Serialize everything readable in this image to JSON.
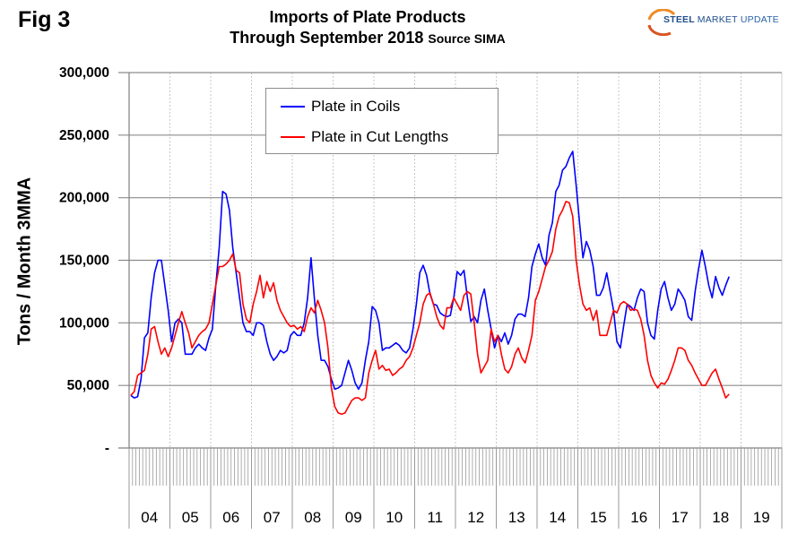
{
  "figure_label": "Fig 3",
  "title_line1": "Imports of Plate Products",
  "title_line2": "Through September 2018",
  "title_source": "Source SIMA",
  "logo": {
    "word1": "STEEL",
    "word2": "MARKET",
    "word3": "UPDATE"
  },
  "chart_data": {
    "type": "line",
    "title": "Imports of Plate Products Through September 2018 Source SIMA",
    "xlabel": "",
    "ylabel": "Tons / Month 3MMA",
    "ylim": [
      0,
      300000
    ],
    "yticks": [
      0,
      50000,
      100000,
      150000,
      200000,
      250000,
      300000
    ],
    "ytick_labels": [
      "-",
      "50,000",
      "100,000",
      "150,000",
      "200,000",
      "250,000",
      "300,000"
    ],
    "x_categories": [
      "04",
      "05",
      "06",
      "07",
      "08",
      "09",
      "10",
      "11",
      "12",
      "13",
      "14",
      "15",
      "16",
      "17",
      "18",
      "19"
    ],
    "x_start": "Jan 2004",
    "x_end": "Sep 2018",
    "frequency": "monthly",
    "grid": "horizontal solid, vertical dotted at year boundaries",
    "legend_position": "top-left inside",
    "series": [
      {
        "name": "Plate in Coils",
        "color": "#0000ff",
        "values": [
          42000,
          40000,
          41000,
          55000,
          88000,
          92000,
          120000,
          140000,
          150000,
          150000,
          130000,
          110000,
          85000,
          100000,
          103000,
          100000,
          75000,
          75000,
          75000,
          80000,
          83000,
          80000,
          78000,
          88000,
          95000,
          130000,
          160000,
          205000,
          203000,
          190000,
          160000,
          140000,
          120000,
          100000,
          93000,
          93000,
          90000,
          100000,
          100000,
          98000,
          85000,
          75000,
          70000,
          73000,
          78000,
          76000,
          78000,
          90000,
          93000,
          90000,
          90000,
          100000,
          120000,
          152000,
          120000,
          90000,
          70000,
          70000,
          65000,
          55000,
          47000,
          48000,
          50000,
          60000,
          70000,
          62000,
          52000,
          47000,
          52000,
          70000,
          85000,
          113000,
          110000,
          100000,
          78000,
          80000,
          80000,
          82000,
          84000,
          82000,
          78000,
          76000,
          80000,
          95000,
          115000,
          140000,
          146000,
          138000,
          123000,
          115000,
          114000,
          108000,
          106000,
          105000,
          106000,
          120000,
          141000,
          138000,
          142000,
          120000,
          101000,
          105000,
          100000,
          118000,
          127000,
          110000,
          95000,
          80000,
          90000,
          85000,
          92000,
          83000,
          90000,
          103000,
          107000,
          107000,
          105000,
          120000,
          145000,
          155000,
          163000,
          152000,
          146000,
          170000,
          180000,
          205000,
          210000,
          222000,
          225000,
          232000,
          237000,
          210000,
          180000,
          152000,
          165000,
          158000,
          145000,
          122000,
          122000,
          128000,
          140000,
          125000,
          110000,
          85000,
          80000,
          98000,
          115000,
          113000,
          110000,
          120000,
          127000,
          125000,
          100000,
          90000,
          87000,
          110000,
          127000,
          133000,
          120000,
          110000,
          115000,
          127000,
          123000,
          118000,
          105000,
          102000,
          125000,
          143000,
          158000,
          145000,
          130000,
          120000,
          137000,
          128000,
          122000,
          130000,
          137000
        ]
      },
      {
        "name": "Plate in Cut Lengths",
        "color": "#ff0000",
        "values": [
          42000,
          45000,
          58000,
          60000,
          62000,
          75000,
          95000,
          97000,
          85000,
          75000,
          80000,
          73000,
          80000,
          90000,
          100000,
          109000,
          100000,
          92000,
          80000,
          85000,
          90000,
          93000,
          95000,
          100000,
          115000,
          130000,
          145000,
          145000,
          147000,
          150000,
          155000,
          142000,
          140000,
          115000,
          103000,
          100000,
          115000,
          125000,
          138000,
          120000,
          133000,
          125000,
          132000,
          118000,
          110000,
          105000,
          100000,
          97000,
          98000,
          95000,
          97000,
          93000,
          105000,
          112000,
          108000,
          118000,
          110000,
          100000,
          80000,
          48000,
          33000,
          28000,
          27000,
          28000,
          33000,
          38000,
          40000,
          40000,
          38000,
          40000,
          60000,
          70000,
          78000,
          63000,
          66000,
          62000,
          63000,
          58000,
          60000,
          63000,
          65000,
          70000,
          73000,
          80000,
          90000,
          100000,
          115000,
          122000,
          124000,
          115000,
          105000,
          98000,
          95000,
          112000,
          112000,
          120000,
          115000,
          110000,
          122000,
          125000,
          123000,
          100000,
          75000,
          60000,
          65000,
          70000,
          95000,
          85000,
          90000,
          75000,
          63000,
          60000,
          65000,
          75000,
          80000,
          72000,
          68000,
          78000,
          90000,
          118000,
          125000,
          135000,
          145000,
          150000,
          157000,
          175000,
          185000,
          190000,
          197000,
          196000,
          185000,
          150000,
          130000,
          115000,
          110000,
          112000,
          102000,
          110000,
          90000,
          90000,
          90000,
          100000,
          110000,
          108000,
          115000,
          117000,
          115000,
          110000,
          111000,
          110000,
          103000,
          90000,
          70000,
          58000,
          52000,
          48000,
          52000,
          51000,
          55000,
          62000,
          70000,
          80000,
          80000,
          78000,
          70000,
          66000,
          60000,
          55000,
          50000,
          50000,
          55000,
          60000,
          63000,
          55000,
          48000,
          40000,
          43000
        ]
      }
    ]
  }
}
